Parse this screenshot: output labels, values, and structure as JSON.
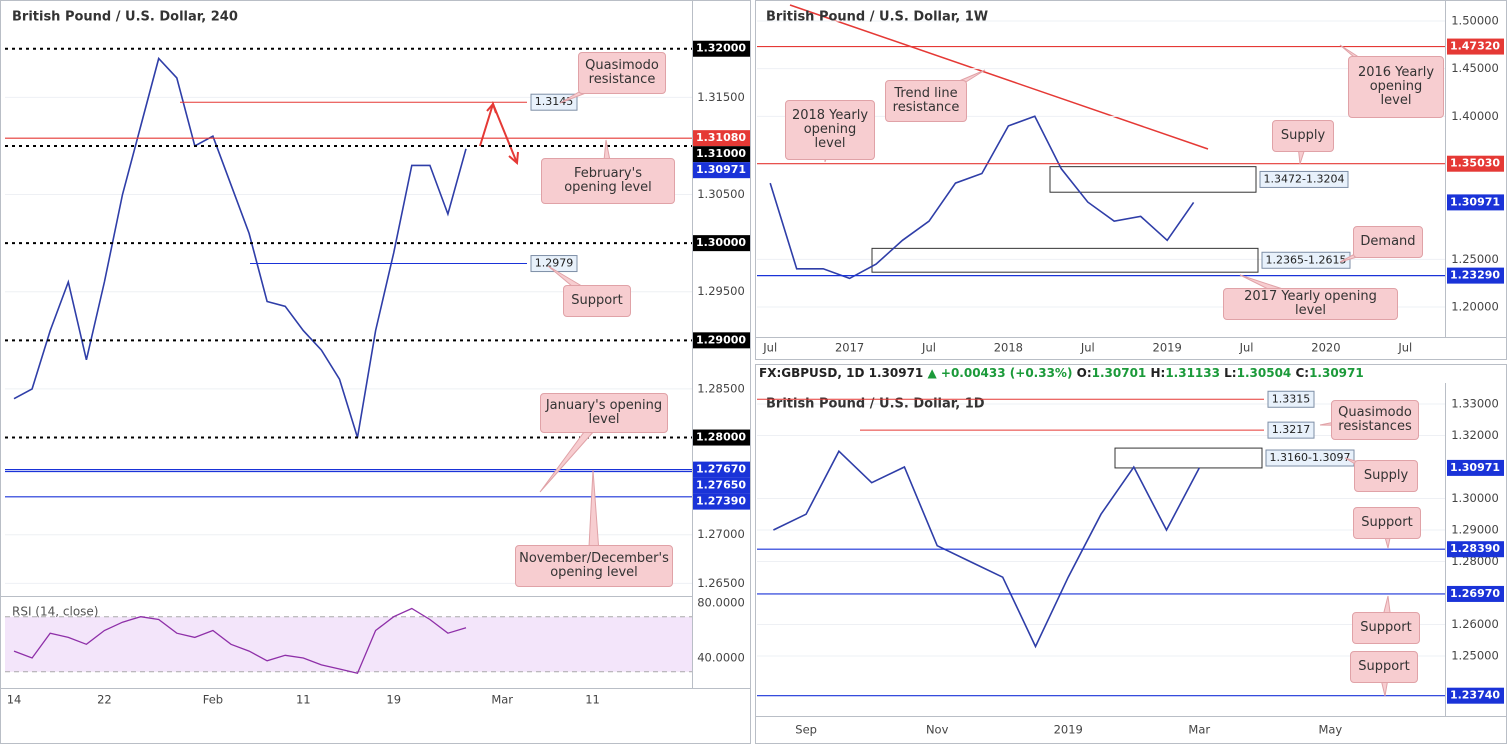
{
  "chart_data": [
    {
      "type": "line",
      "title": "British Pound / U.S. Dollar, 240",
      "categories": [
        "14",
        null,
        null,
        null,
        null,
        "22",
        null,
        null,
        null,
        null,
        null,
        "Feb",
        null,
        null,
        null,
        null,
        "11",
        null,
        null,
        null,
        null,
        "19",
        null,
        null,
        null,
        null,
        null,
        "Mar",
        null,
        null,
        null,
        null,
        "11",
        null,
        null,
        null,
        null,
        null
      ],
      "series": [
        {
          "color": "#2f3ea8",
          "values": [
            1.284,
            1.285,
            1.291,
            1.296,
            1.288,
            1.296,
            1.305,
            1.312,
            1.319,
            1.317,
            1.31,
            1.311,
            1.306,
            1.301,
            1.294,
            1.2935,
            1.291,
            1.289,
            1.286,
            1.28,
            1.291,
            1.299,
            1.308,
            1.308,
            1.303,
            1.30971,
            null,
            null,
            null,
            null,
            null,
            null,
            null,
            null,
            null,
            null,
            null,
            null
          ]
        }
      ],
      "ylim": [
        1.2638,
        1.3245
      ],
      "yticks": [
        {
          "value": 1.265,
          "label": "1.26500"
        },
        {
          "value": 1.27,
          "label": "1.27000"
        },
        {
          "value": 1.285,
          "label": "1.28500"
        },
        {
          "value": 1.295,
          "label": "1.29500"
        },
        {
          "value": 1.305,
          "label": "1.30500"
        },
        {
          "value": 1.315,
          "label": "1.31500"
        }
      ],
      "grid": true,
      "levels": [
        {
          "value": 1.32,
          "label": "1.32000",
          "color": "#000000",
          "style": "dotted"
        },
        {
          "value": 1.3108,
          "label": "1.31080",
          "color": "#e53935",
          "style": "solid"
        },
        {
          "value": 1.31,
          "label": "1.31000",
          "color": "#000000",
          "style": "dotted"
        },
        {
          "value": 1.30971,
          "label": "1.30971",
          "color": "#1a33d8",
          "style": "none"
        },
        {
          "value": 1.3,
          "label": "1.30000",
          "color": "#000000",
          "style": "dotted"
        },
        {
          "value": 1.29,
          "label": "1.29000",
          "color": "#000000",
          "style": "dotted"
        },
        {
          "value": 1.28,
          "label": "1.28000",
          "color": "#000000",
          "style": "dotted"
        },
        {
          "value": 1.2767,
          "label": "1.27670",
          "color": "#1a33d8",
          "style": "solid"
        },
        {
          "value": 1.2765,
          "label": "1.27650",
          "color": "#1a33d8",
          "style": "solid"
        },
        {
          "value": 1.2739,
          "label": "1.27390",
          "color": "#1a33d8",
          "style": "solid"
        }
      ],
      "marked_levels": [
        {
          "value": 1.3145,
          "label": "1.3145",
          "color": "#e53935"
        },
        {
          "value": 1.2979,
          "label": "1.2979",
          "color": "#1a33d8"
        }
      ],
      "annotations": [
        "Quasimodo resistance",
        "February's opening level",
        "Support",
        "January's opening level",
        "November/December's opening level"
      ],
      "rsi": {
        "title": "RSI (14, close)",
        "color": "#8e2fa8",
        "ylim": [
          20.4,
          83.6
        ],
        "band": [
          30,
          70
        ],
        "yticks": [
          {
            "value": 40,
            "label": "40.0000"
          },
          {
            "value": 80,
            "label": "80.0000"
          }
        ],
        "values": [
          45,
          40,
          58,
          55,
          50,
          60,
          66,
          70,
          68,
          58,
          55,
          60,
          50,
          45,
          38,
          42,
          40,
          35,
          32,
          29,
          60,
          70,
          76,
          68,
          58,
          62,
          null,
          null,
          null,
          null,
          null,
          null,
          null,
          null,
          null,
          null,
          null,
          null
        ]
      }
    },
    {
      "type": "line",
      "title": "British Pound / U.S. Dollar, 1W",
      "categories": [
        "Jul",
        null,
        null,
        "2017",
        null,
        null,
        "Jul",
        null,
        null,
        "2018",
        null,
        null,
        "Jul",
        null,
        null,
        "2019",
        null,
        null,
        "Jul",
        null,
        null,
        "2020",
        null,
        null,
        "Jul",
        null
      ],
      "series": [
        {
          "color": "#2f3ea8",
          "values": [
            1.33,
            1.24,
            1.24,
            1.23,
            1.245,
            1.27,
            1.29,
            1.33,
            1.34,
            1.39,
            1.4,
            1.345,
            1.31,
            1.29,
            1.295,
            1.27,
            1.30971,
            null,
            null,
            null,
            null,
            null,
            null,
            null,
            null,
            null
          ]
        }
      ],
      "ylim": [
        1.1706,
        1.5168
      ],
      "yticks": [
        {
          "value": 1.2,
          "label": "1.20000"
        },
        {
          "value": 1.25,
          "label": "1.25000"
        },
        {
          "value": 1.4,
          "label": "1.40000"
        },
        {
          "value": 1.45,
          "label": "1.45000"
        },
        {
          "value": 1.5,
          "label": "1.50000"
        }
      ],
      "grid": true,
      "levels": [
        {
          "value": 1.4732,
          "label": "1.47320",
          "color": "#e53935",
          "style": "solid"
        },
        {
          "value": 1.3503,
          "label": "1.35030",
          "color": "#e53935",
          "style": "solid"
        },
        {
          "value": 1.30971,
          "label": "1.30971",
          "color": "#1a33d8",
          "style": "none"
        },
        {
          "value": 1.2329,
          "label": "1.23290",
          "color": "#1a33d8",
          "style": "solid"
        }
      ],
      "zones": [
        {
          "label": "1.3472-1.3204",
          "range": [
            1.3472,
            1.3204
          ]
        },
        {
          "label": "1.2365-1.2615",
          "range": [
            1.2365,
            1.2615
          ]
        }
      ],
      "annotations": [
        "Trend line resistance",
        "2018 Yearly opening level",
        "Supply",
        "2016 Yearly opening level",
        "Demand",
        "2017 Yearly opening level"
      ]
    },
    {
      "type": "line",
      "title": "British Pound / U.S. Dollar, 1D",
      "header": {
        "symbol": "FX:GBPUSD, 1D",
        "last": 1.30971,
        "arrow": "▲",
        "change": "+0.00433 (+0.33%)",
        "ohlc": [
          {
            "label": "O:",
            "value": 1.30701
          },
          {
            "label": "H:",
            "value": 1.31133
          },
          {
            "label": "L:",
            "value": 1.30504
          },
          {
            "label": "C:",
            "value": 1.30971
          }
        ]
      },
      "categories": [
        null,
        "Sep",
        null,
        null,
        null,
        "Nov",
        null,
        null,
        null,
        "2019",
        null,
        null,
        null,
        "Mar",
        null,
        null,
        null,
        "May",
        null,
        null,
        null
      ],
      "series": [
        {
          "color": "#2f3ea8",
          "values": [
            1.29,
            1.295,
            1.315,
            1.305,
            1.31,
            1.285,
            1.28,
            1.275,
            1.253,
            1.275,
            1.295,
            1.31,
            1.29,
            1.30971,
            null,
            null,
            null,
            null,
            null,
            null,
            null
          ]
        }
      ],
      "ylim": [
        1.23127,
        1.33444
      ],
      "yticks": [
        {
          "value": 1.25,
          "label": "1.25000"
        },
        {
          "value": 1.26,
          "label": "1.26000"
        },
        {
          "value": 1.28,
          "label": "1.28000"
        },
        {
          "value": 1.29,
          "label": "1.29000"
        },
        {
          "value": 1.3,
          "label": "1.30000"
        },
        {
          "value": 1.32,
          "label": "1.32000"
        },
        {
          "value": 1.33,
          "label": "1.33000"
        }
      ],
      "grid": true,
      "levels": [
        {
          "value": 1.30971,
          "label": "1.30971",
          "color": "#1a33d8",
          "style": "none"
        },
        {
          "value": 1.2839,
          "label": "1.28390",
          "color": "#1a33d8",
          "style": "solid"
        },
        {
          "value": 1.2697,
          "label": "1.26970",
          "color": "#1a33d8",
          "style": "solid"
        },
        {
          "value": 1.2374,
          "label": "1.23740",
          "color": "#1a33d8",
          "style": "solid"
        }
      ],
      "marked_levels": [
        {
          "value": 1.3315,
          "label": "1.3315",
          "color": "#e53935"
        },
        {
          "value": 1.3217,
          "label": "1.3217",
          "color": "#e53935"
        }
      ],
      "zones": [
        {
          "label": "1.3160-1.3097",
          "range": [
            1.316,
            1.3097
          ]
        }
      ],
      "annotations": [
        "Quasimodo resistances",
        "Supply",
        "Support",
        "Support",
        "Support"
      ]
    }
  ]
}
